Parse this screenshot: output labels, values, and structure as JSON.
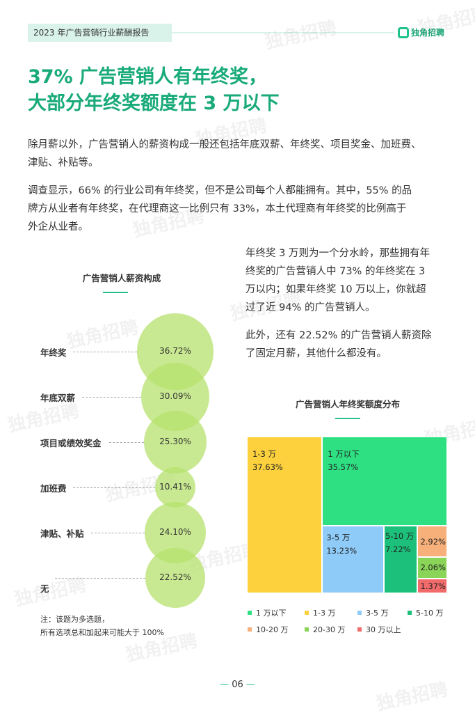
{
  "header": {
    "report_title": "2023 年广告营销行业薪酬报告",
    "brand": "独角招聘"
  },
  "watermark_text": "独角招聘",
  "title": {
    "line1": "37% 广告营销人有年终奖，",
    "line2": "大部分年终奖额度在 3 万以下"
  },
  "paragraphs": {
    "p1_line1": "除月薪以外，广告营销人的薪资构成一般还包括年底双薪、年终奖、项目奖金、加班费、",
    "p1_line2": "津贴、补贴等。",
    "p2_line1": "调查显示，66% 的行业公司有年终奖，但不是公司每个人都能拥有。其中，55% 的品",
    "p2_line2": "牌方从业者有年终奖，在代理商这一比例只有 33%，本土代理商有年终奖的比例高于",
    "p2_line3": "外企从业者。",
    "p3_line1": "年终奖 3 万则为一个分水岭，那些拥有年",
    "p3_line2": "终奖的广告营销人中 73% 的年终奖在 3",
    "p3_line3": "万以内；如果年终奖 10 万以上，你就超",
    "p3_line4": "过了近 94% 的广告营销人。",
    "p4_line1": "此外，还有 22.52% 的广告营销人薪资除",
    "p4_line2": "了固定月薪，其他什么都没有。"
  },
  "chart_data": [
    {
      "type": "bubble",
      "title": "广告营销人薪资构成",
      "categories": [
        "年终奖",
        "年底双薪",
        "项目或绩效奖金",
        "加班费",
        "津贴、补贴",
        "无"
      ],
      "values": [
        36.72,
        30.09,
        25.3,
        10.41,
        24.1,
        22.52
      ],
      "labels": [
        "36.72%",
        "30.09%",
        "25.30%",
        "10.41%",
        "24.10%",
        "22.52%"
      ],
      "color": "#b5e16c"
    },
    {
      "type": "treemap",
      "title": "广告营销人年终奖额度分布",
      "series": [
        {
          "name": "1 万以下",
          "value": 35.57,
          "label": "35.57%",
          "color": "#2ee082"
        },
        {
          "name": "1-3 万",
          "value": 37.63,
          "label": "37.63%",
          "color": "#fdd13e"
        },
        {
          "name": "3-5 万",
          "value": 13.23,
          "label": "13.23%",
          "color": "#8ecbf8"
        },
        {
          "name": "5-10 万",
          "value": 7.22,
          "label": "7.22%",
          "color": "#1cc07a"
        },
        {
          "name": "10-20 万",
          "value": 2.92,
          "label": "2.92%",
          "color": "#f7b07a"
        },
        {
          "name": "20-30 万",
          "value": 2.06,
          "label": "2.06%",
          "color": "#8ad458"
        },
        {
          "name": "30 万以上",
          "value": 1.37,
          "label": "1.37%",
          "color": "#f26b6b"
        }
      ]
    }
  ],
  "note": {
    "line1": "注：该题为多选题，",
    "line2": "所有选项总和加起来可能大于 100%"
  },
  "page": {
    "number": "06"
  }
}
